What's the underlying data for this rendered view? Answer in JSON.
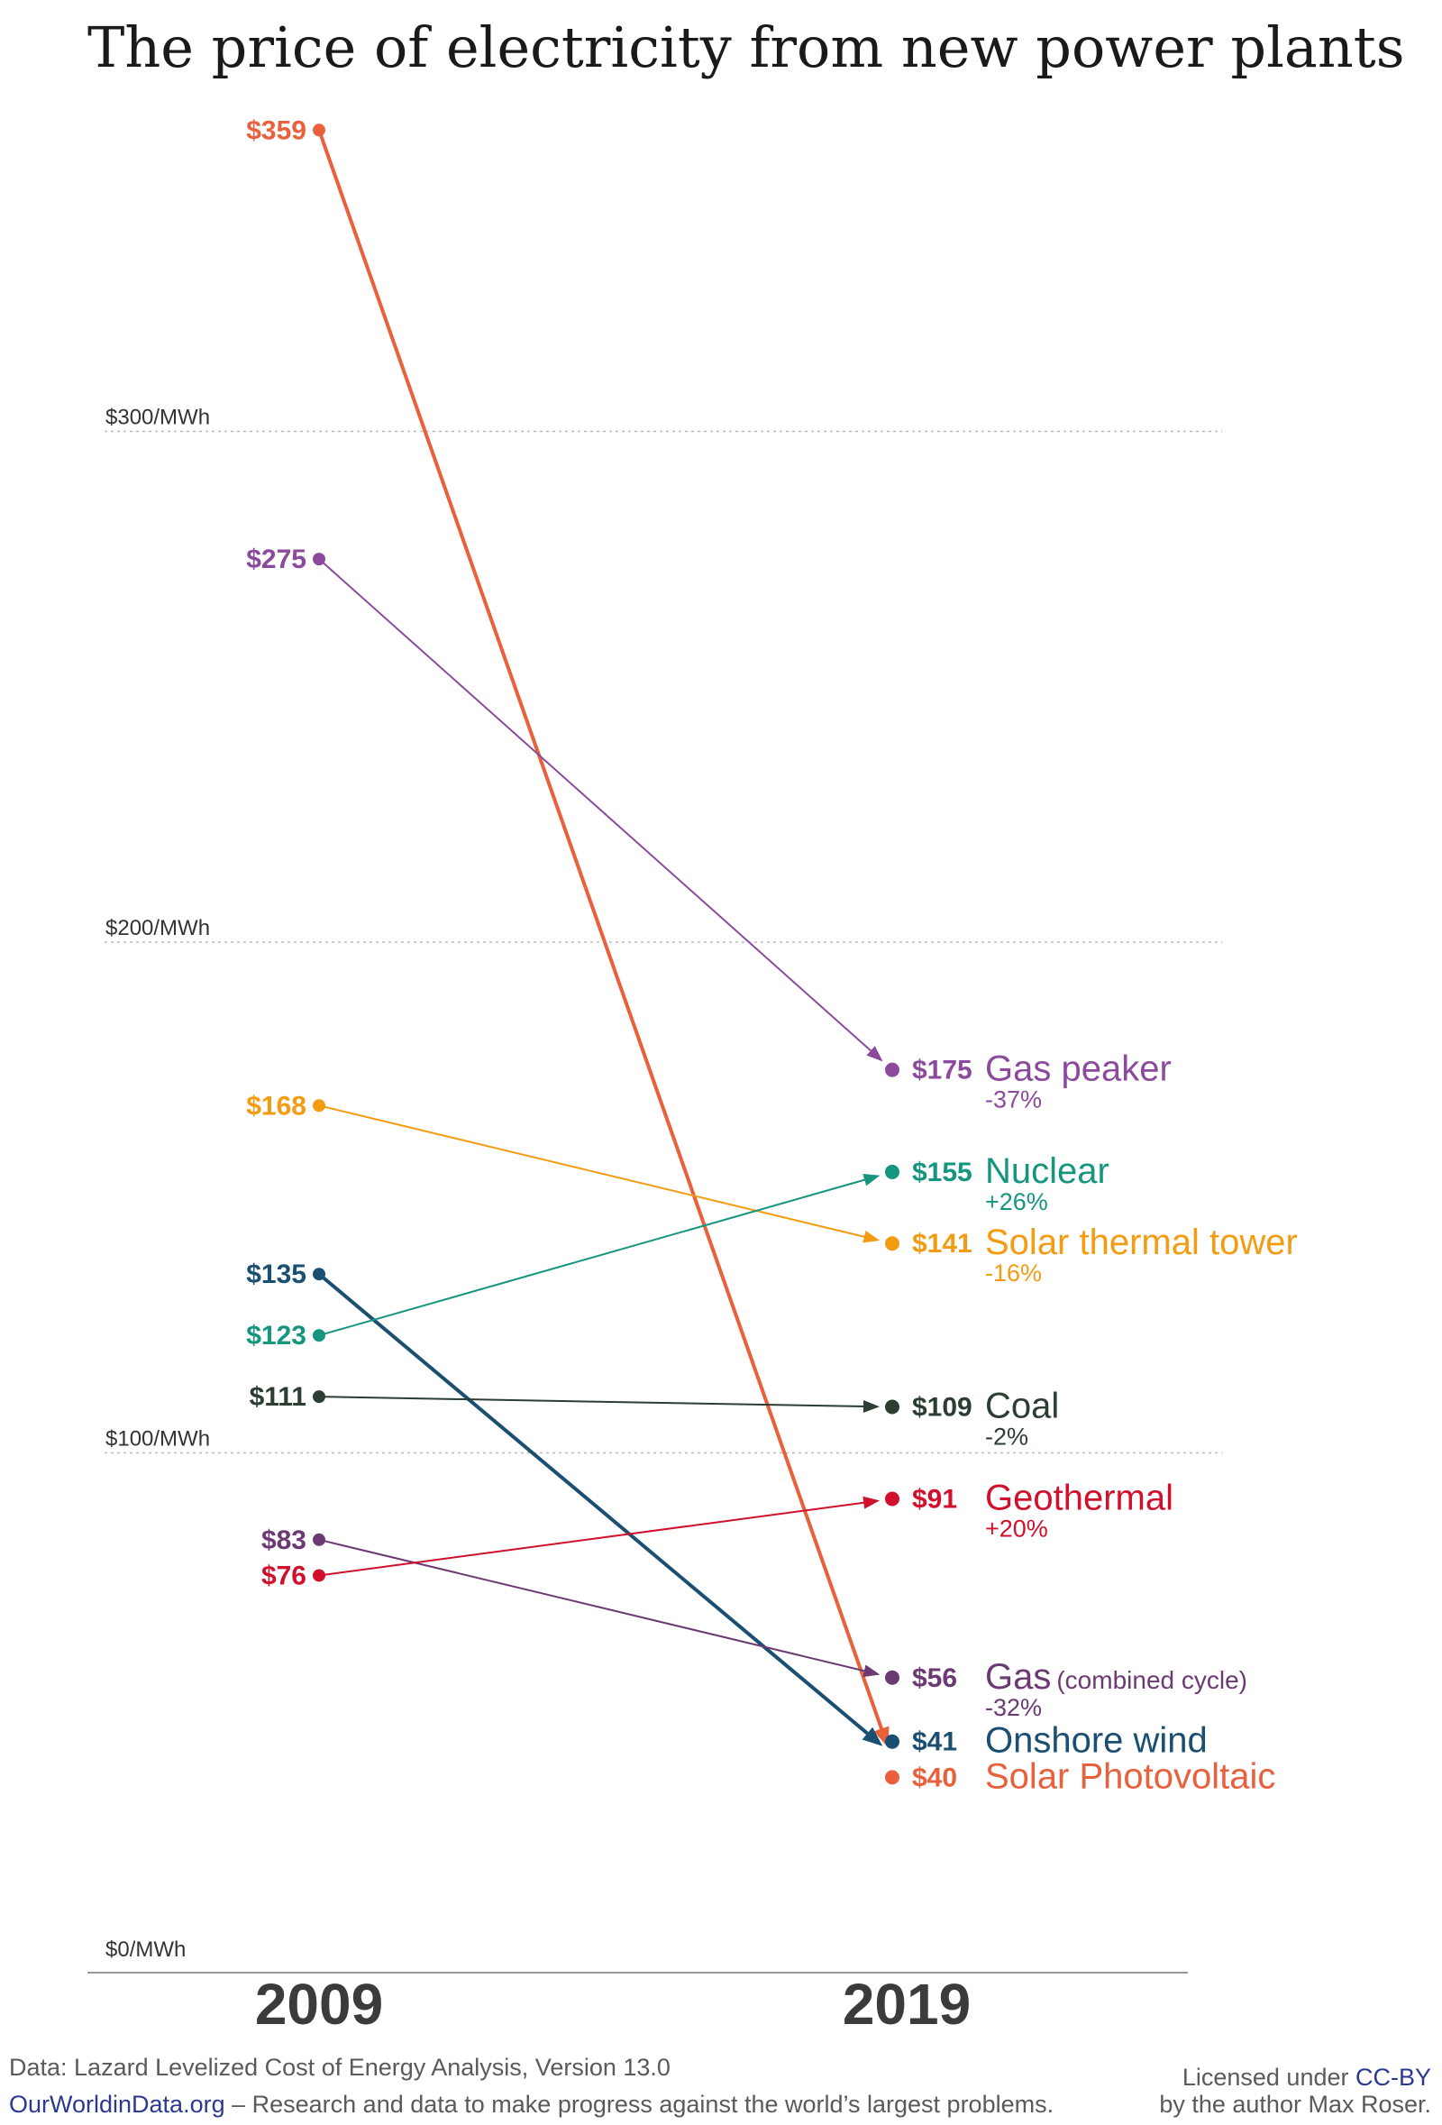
{
  "title": "The price of electricity from new power plants",
  "chart_data": {
    "type": "line",
    "x": [
      "2009",
      "2019"
    ],
    "ylim": [
      0,
      380
    ],
    "y_ticks": [
      {
        "value": 300,
        "label": "$300/MWh"
      },
      {
        "value": 200,
        "label": "$200/MWh"
      },
      {
        "value": 100,
        "label": "$100/MWh"
      },
      {
        "value": 0,
        "label": "$0/MWh"
      }
    ],
    "grid": true,
    "series": [
      {
        "key": "solar_pv",
        "name": "Solar Photovoltaic",
        "note": "",
        "values": [
          359,
          40
        ],
        "start_label": "$359",
        "end_label": "$40",
        "change": "",
        "color": "#e8603c",
        "width": 4
      },
      {
        "key": "gas_peaker",
        "name": "Gas peaker",
        "note": "",
        "values": [
          275,
          175
        ],
        "start_label": "$275",
        "end_label": "$175",
        "change": "-37%",
        "color": "#8b4a9c",
        "width": 2
      },
      {
        "key": "solar_thermal",
        "name": "Solar thermal tower",
        "note": "",
        "values": [
          168,
          141
        ],
        "start_label": "$168",
        "end_label": "$141",
        "change": "-16%",
        "color": "#f39c12",
        "width": 2
      },
      {
        "key": "onshore_wind",
        "name": "Onshore wind",
        "note": "",
        "values": [
          135,
          41
        ],
        "start_label": "$135",
        "end_label": "$41",
        "change": "",
        "color": "#1b4f72",
        "width": 4
      },
      {
        "key": "nuclear",
        "name": "Nuclear",
        "note": "",
        "values": [
          123,
          155
        ],
        "start_label": "$123",
        "end_label": "$155",
        "change": "+26%",
        "color": "#16957f",
        "width": 2
      },
      {
        "key": "coal",
        "name": "Coal",
        "note": "",
        "values": [
          111,
          109
        ],
        "start_label": "$111",
        "end_label": "$109",
        "change": "-2%",
        "color": "#2c3e32",
        "width": 2
      },
      {
        "key": "gas_cc",
        "name": "Gas",
        "note": "(combined cycle)",
        "values": [
          83,
          56
        ],
        "start_label": "$83",
        "end_label": "$56",
        "change": "-32%",
        "color": "#6c3a73",
        "width": 2
      },
      {
        "key": "geothermal",
        "name": "Geothermal",
        "note": "",
        "values": [
          76,
          91
        ],
        "start_label": "$76",
        "end_label": "$91",
        "change": "+20%",
        "color": "#d0102c",
        "width": 2
      }
    ]
  },
  "footer": {
    "source": "Data: Lazard Levelized Cost of Energy Analysis, Version 13.0",
    "site": "OurWorldinData.org",
    "tagline": " – Research and data to make progress against the world’s largest problems.",
    "license_prefix": "Licensed under ",
    "license_link": "CC-BY",
    "author": "by the author Max Roser."
  }
}
